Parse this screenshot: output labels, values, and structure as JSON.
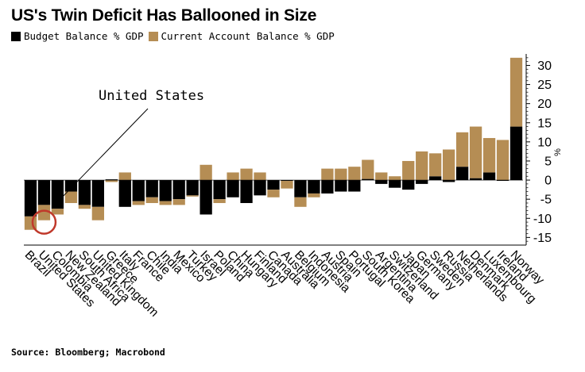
{
  "title": "US's Twin Deficit Has Ballooned in Size",
  "source": "Source: Bloomberg; Macrobond",
  "chart_data": {
    "type": "bar",
    "stacked": true,
    "ylabel": "%",
    "ylim": [
      -17,
      33
    ],
    "yticks": [
      30,
      25,
      20,
      15,
      10,
      5,
      0,
      -5,
      -10,
      -15
    ],
    "grid": false,
    "legend_position": "top-left",
    "categories": [
      "Brazil",
      "United States",
      "Colombia",
      "New Zealand",
      "South Africa",
      "United Kingdom",
      "Greece",
      "Italy",
      "France",
      "Chile",
      "India",
      "Mexico",
      "Turkey",
      "Israel",
      "Poland",
      "China",
      "Hungary",
      "Finland",
      "Canada",
      "Australia",
      "Belgium",
      "Indonesia",
      "Austria",
      "Spain",
      "Portugal",
      "South Korea",
      "Argentina",
      "Switzerland",
      "Japan",
      "Germany",
      "Sweden",
      "Russia",
      "Netherlands",
      "Denmark",
      "Luxembourg",
      "Ireland",
      "Norway"
    ],
    "series": [
      {
        "name": "Budget Balance % GDP",
        "color": "#000000",
        "values": [
          -9.5,
          -6.5,
          -7.5,
          -3.0,
          -6.5,
          -7.0,
          0.2,
          -7.0,
          -5.5,
          -4.5,
          -5.5,
          -5.0,
          -4.0,
          -9.0,
          -5.0,
          -4.5,
          -6.0,
          -4.0,
          -2.5,
          -0.2,
          -4.5,
          -3.5,
          -3.5,
          -3.0,
          -3.0,
          0.3,
          -1.0,
          -2.0,
          -2.5,
          -1.0,
          1.0,
          -0.5,
          3.5,
          0.5,
          2.0,
          -0.2,
          14.0
        ]
      },
      {
        "name": "Current Account Balance % GDP",
        "color": "#b58d54",
        "values": [
          -3.5,
          -4.0,
          -1.5,
          -3.0,
          -1.0,
          -3.5,
          -0.5,
          2.0,
          -1.0,
          -1.5,
          -1.0,
          -1.5,
          -0.3,
          4.0,
          -1.0,
          2.0,
          3.0,
          2.0,
          -2.0,
          -2.0,
          -2.5,
          -1.0,
          3.0,
          3.0,
          3.5,
          5.0,
          2.0,
          1.0,
          5.0,
          7.5,
          6.0,
          8.0,
          9.0,
          13.5,
          9.0,
          10.5,
          18.0
        ]
      }
    ],
    "annotations": [
      {
        "text": "United States",
        "category": "United States"
      }
    ]
  }
}
